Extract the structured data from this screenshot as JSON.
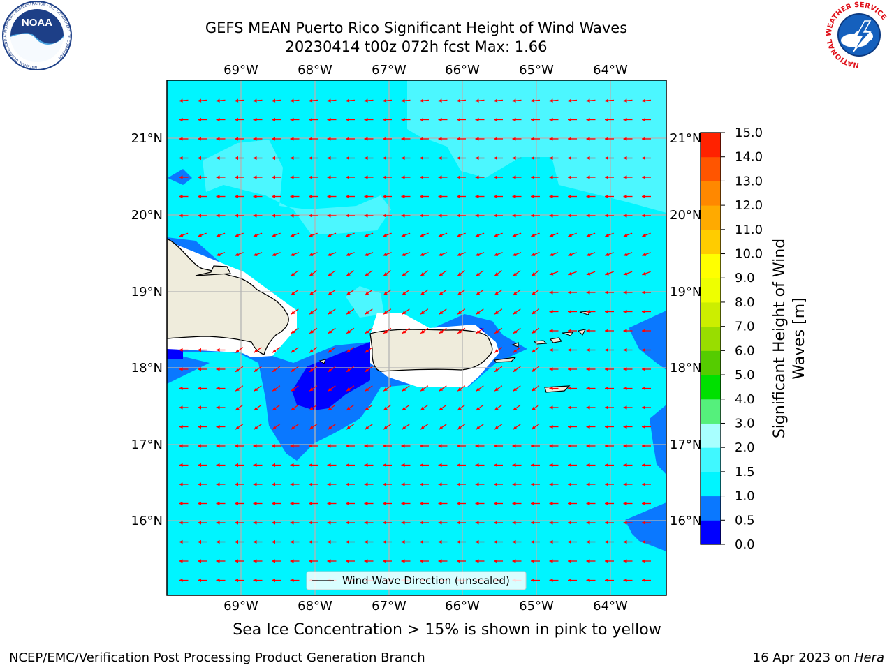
{
  "header": {
    "title_line1": "GEFS MEAN Puerto Rico Significant Height of Wind Waves",
    "title_line2": "20230414 t00z 072h fcst   Max: 1.66",
    "noara_logo_text": "NOAA",
    "noaa_ring_text": "NATIONAL OCEANIC AND ATMOSPHERIC ADMINISTRATION · U.S. DEPARTMENT OF COMMERCE",
    "nws_ring_text": "NATIONAL WEATHER SERVICE"
  },
  "map": {
    "lon_labels": [
      "69°W",
      "68°W",
      "67°W",
      "66°W",
      "65°W",
      "64°W"
    ],
    "lat_labels": [
      "21°N",
      "20°N",
      "19°N",
      "18°N",
      "17°N",
      "16°N"
    ],
    "legend_label": "Wind Wave Direction (unscaled)",
    "vector_color": "#ff0000",
    "land_color": "#efecdc"
  },
  "colorbar": {
    "label": "Significant Height of Wind Waves [m]",
    "label_line1": "Significant Height of Wind",
    "label_line2": "Waves [m]",
    "ticks": [
      "0.0",
      "0.5",
      "1.0",
      "1.5",
      "2.0",
      "3.0",
      "4.0",
      "5.0",
      "6.0",
      "7.0",
      "8.0",
      "9.0",
      "10.0",
      "11.0",
      "12.0",
      "13.0",
      "14.0",
      "15.0"
    ],
    "colors": [
      "#0000ff",
      "#0a78ff",
      "#00f5ff",
      "#40f8ff",
      "#a8ffff",
      "#55f07c",
      "#00e000",
      "#55cc00",
      "#99dd00",
      "#ccee00",
      "#eeff00",
      "#ffff00",
      "#ffcc00",
      "#ffaa00",
      "#ff8800",
      "#ff5500",
      "#ff2200"
    ]
  },
  "caption": "Sea Ice Concentration > 15% is shown in pink to yellow",
  "footer": {
    "left": "NCEP/EMC/Verification Post Processing Product Generation Branch",
    "right_date": "16 Apr 2023 on ",
    "right_host": "Hera"
  }
}
